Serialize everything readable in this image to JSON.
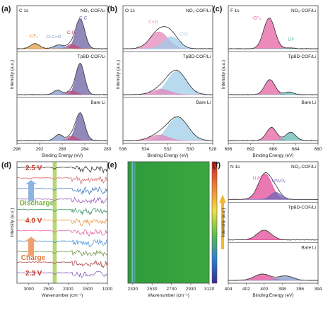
{
  "colors": {
    "cc": "#6a5aa0",
    "co": "#c0487a",
    "ocoo": "#7d96c9",
    "cf3": "#e59a3c",
    "c_o_o1s": "#9ccce8",
    "cdo_o1s": "#e383b8",
    "cf_f": "#e45d9e",
    "lif": "#60b7b0",
    "li3n": "#e24596",
    "linxoy": "#6c63b7",
    "raw": "#8a8a8a",
    "frame": "#555555"
  },
  "figure": {
    "panels": [
      {
        "id": "a",
        "letter": "(a)",
        "title": "C 1s",
        "type": "xps",
        "xlabel": "Binding Energy (eV)",
        "ylabel": "Intensity (a.u.)",
        "xticks": [
          "296",
          "292",
          "288",
          "284",
          "280"
        ],
        "rows": [
          {
            "label": "NO₂-COF/Li",
            "peaks": [
              {
                "name": "C-C",
                "center": 284.8,
                "height": 0.78,
                "width": 0.8,
                "color_key": "cc"
              },
              {
                "name": "C-O",
                "center": 286.3,
                "height": 0.12,
                "width": 0.8,
                "color_key": "co"
              },
              {
                "name": "O-C=O",
                "center": 288.6,
                "height": 0.1,
                "width": 0.9,
                "color_key": "ocoo"
              },
              {
                "name": "-CF₃",
                "center": 292.8,
                "height": 0.14,
                "width": 0.8,
                "color_key": "cf3"
              }
            ],
            "labels": [
              {
                "text": "-CF₃",
                "x": 293.1,
                "y": 0.3,
                "color_key": "cf3"
              },
              {
                "text": "-O-C=O",
                "x": 289.6,
                "y": 0.28,
                "color_key": "ocoo"
              },
              {
                "text": "C-O",
                "x": 286.4,
                "y": 0.4,
                "color_key": "co"
              },
              {
                "text": "C-C",
                "x": 284.3,
                "y": 0.78,
                "color_key": "cc"
              }
            ]
          },
          {
            "label": "TpBD-COF/Li",
            "peaks": [
              {
                "name": "C-C",
                "center": 284.8,
                "height": 0.82,
                "width": 0.75,
                "color_key": "cc"
              },
              {
                "name": "C-O",
                "center": 286.3,
                "height": 0.1,
                "width": 0.8,
                "color_key": "co"
              },
              {
                "name": "O-C=O",
                "center": 288.8,
                "height": 0.12,
                "width": 0.7,
                "color_key": "ocoo"
              }
            ],
            "labels": []
          },
          {
            "label": "Bare Li",
            "peaks": [
              {
                "name": "C-C",
                "center": 284.8,
                "height": 0.72,
                "width": 0.8,
                "color_key": "cc"
              },
              {
                "name": "C-O",
                "center": 286.3,
                "height": 0.12,
                "width": 0.8,
                "color_key": "co"
              },
              {
                "name": "O-C=O",
                "center": 288.6,
                "height": 0.16,
                "width": 0.7,
                "color_key": "ocoo"
              }
            ],
            "labels": []
          }
        ]
      },
      {
        "id": "b",
        "letter": "(b)",
        "title": "O 1s",
        "type": "xps",
        "xlabel": "Binding Energy (eV)",
        "ylabel": "Intensity (a.u.)",
        "xticks": [
          "536",
          "534",
          "532",
          "530",
          "528"
        ],
        "rows": [
          {
            "label": "NO₂-COF/Li",
            "peaks": [
              {
                "name": "C=O",
                "center": 532.8,
                "height": 0.45,
                "width": 0.8,
                "color_key": "cdo_o1s"
              },
              {
                "name": "C-O",
                "center": 531.7,
                "height": 0.32,
                "width": 0.7,
                "color_key": "c_o_o1s"
              }
            ],
            "labels": [
              {
                "text": "C=O",
                "x": 533.3,
                "y": 0.68,
                "color_key": "cdo_o1s"
              },
              {
                "text": "C-O",
                "x": 530.6,
                "y": 0.35,
                "color_key": "c_o_o1s"
              }
            ]
          },
          {
            "label": "TpBD-COF/Li",
            "peaks": [
              {
                "name": "C-O",
                "center": 531.2,
                "height": 0.62,
                "width": 0.85,
                "color_key": "c_o_o1s"
              },
              {
                "name": "C=O",
                "center": 532.6,
                "height": 0.14,
                "width": 0.8,
                "color_key": "cdo_o1s"
              }
            ],
            "labels": []
          },
          {
            "label": "Bare Li",
            "peaks": [
              {
                "name": "C-O",
                "center": 531.1,
                "height": 0.62,
                "width": 0.9,
                "color_key": "c_o_o1s"
              },
              {
                "name": "C=O",
                "center": 532.8,
                "height": 0.15,
                "width": 0.8,
                "color_key": "cdo_o1s"
              }
            ],
            "labels": []
          }
        ]
      },
      {
        "id": "c",
        "letter": "(c)",
        "title": "F 1s",
        "type": "xps",
        "xlabel": "Binding Energy (eV)",
        "ylabel": "Intensity (a.u.)",
        "xticks": [
          "696",
          "692",
          "688",
          "684",
          "680"
        ],
        "rows": [
          {
            "label": "NO₂-COF/Li",
            "peaks": [
              {
                "name": "-CF₃",
                "center": 688.7,
                "height": 0.82,
                "width": 1.0,
                "color_key": "cf_f"
              },
              {
                "name": "LiF",
                "center": 685.0,
                "height": 0.02,
                "width": 0.8,
                "color_key": "lif"
              }
            ],
            "labels": [
              {
                "text": "-CF₃",
                "x": 691.0,
                "y": 0.78,
                "color_key": "cf_f"
              },
              {
                "text": "LiF",
                "x": 684.8,
                "y": 0.22,
                "color_key": "lif"
              }
            ]
          },
          {
            "label": "TpBD-COF/Li",
            "peaks": [
              {
                "name": "-CF₃",
                "center": 688.6,
                "height": 0.4,
                "width": 0.9,
                "color_key": "cf_f"
              },
              {
                "name": "LiF",
                "center": 685.2,
                "height": 0.07,
                "width": 0.8,
                "color_key": "lif"
              }
            ],
            "labels": []
          },
          {
            "label": "Bare Li",
            "peaks": [
              {
                "name": "-CF₃",
                "center": 688.3,
                "height": 0.35,
                "width": 0.9,
                "color_key": "cf_f"
              },
              {
                "name": "LiF",
                "center": 684.9,
                "height": 0.22,
                "width": 0.9,
                "color_key": "lif"
              }
            ],
            "labels": []
          }
        ]
      },
      {
        "id": "d",
        "letter": "(d)",
        "type": "ftir",
        "xlabel": "Wavenumber (cm⁻¹)",
        "ylabel": "Intensity (a.u.)",
        "xticks": [
          "3000",
          "2500",
          "2000",
          "1500",
          "1000"
        ],
        "voltage_labels": [
          {
            "text": "2.5 V",
            "row": 0
          },
          {
            "text": "4.0 V",
            "row": 5
          },
          {
            "text": "2.3 V",
            "row": 10
          }
        ],
        "arrows": [
          {
            "text": "Discharge",
            "direction": "up"
          },
          {
            "text": "Charge",
            "direction": "up"
          }
        ],
        "line_colors": [
          "#222222",
          "#d95f5f",
          "#3b78c4",
          "#9b59b6",
          "#2e8b57",
          "#f08c2e",
          "#e8559c",
          "#3a8dde",
          "#6a8f3a",
          "#aa3a3a",
          "#7a4db0"
        ]
      },
      {
        "id": "e",
        "letter": "(e)",
        "type": "heatmap",
        "xlabel": "Wavenumber (cm⁻¹)",
        "xticks": [
          "2330",
          "2530",
          "2730",
          "2930",
          "3120"
        ]
      },
      {
        "id": "f",
        "letter": "(f)",
        "title": "N 1s",
        "type": "xps",
        "xlabel": "Binding Energy (eV)",
        "ylabel": "Intensity (a.u.)",
        "xticks": [
          "404",
          "402",
          "400",
          "398",
          "396",
          "394"
        ],
        "rows": [
          {
            "label": "NO₂-COF/Li",
            "peaks": [
              {
                "name": "Li₃N",
                "center": 399.9,
                "height": 0.8,
                "width": 0.75,
                "color_key": "li3n"
              },
              {
                "name": "LiNₓOᵧ",
                "center": 398.7,
                "height": 0.22,
                "width": 0.6,
                "color_key": "linxoy"
              }
            ],
            "labels": [
              {
                "text": "Li₃N",
                "x": 400.8,
                "y": 0.62,
                "color_key": "li3n"
              },
              {
                "text": "LiNₓOᵧ",
                "x": 398.4,
                "y": 0.55,
                "color_key": "linxoy"
              }
            ]
          },
          {
            "label": "TpBD-COF/Li",
            "peaks": [
              {
                "name": "Li₃N",
                "center": 400.0,
                "height": 0.3,
                "width": 0.8,
                "color_key": "li3n"
              }
            ],
            "labels": []
          },
          {
            "label": "Bare Li",
            "peaks": [
              {
                "name": "Li₃N",
                "center": 400.2,
                "height": 0.2,
                "width": 0.9,
                "color_key": "li3n"
              },
              {
                "name": "Li₃N (2)",
                "center": 397.6,
                "height": 0.14,
                "width": 0.8,
                "color_key": "ocoo"
              }
            ],
            "labels": []
          }
        ]
      }
    ]
  },
  "chart_data": [
    {
      "type": "area",
      "title": "C 1s",
      "xlabel": "Binding Energy (eV)",
      "ylabel": "Intensity (a.u.)",
      "xlim": [
        296,
        280
      ],
      "series": [
        {
          "name": "NO₂-COF/Li",
          "peaks_eV": [
            284.8,
            286.3,
            288.6,
            292.8
          ],
          "peak_labels": [
            "C-C",
            "C-O",
            "-O-C=O",
            "-CF₃"
          ]
        },
        {
          "name": "TpBD-COF/Li",
          "peaks_eV": [
            284.8,
            286.3,
            288.8
          ]
        },
        {
          "name": "Bare Li",
          "peaks_eV": [
            284.8,
            286.3,
            288.6
          ]
        }
      ]
    },
    {
      "type": "area",
      "title": "O 1s",
      "xlabel": "Binding Energy (eV)",
      "ylabel": "Intensity (a.u.)",
      "xlim": [
        536,
        528
      ],
      "series": [
        {
          "name": "NO₂-COF/Li",
          "peaks_eV": [
            532.8,
            531.7
          ],
          "peak_labels": [
            "C=O",
            "C-O"
          ]
        },
        {
          "name": "TpBD-COF/Li",
          "peaks_eV": [
            531.2,
            532.6
          ]
        },
        {
          "name": "Bare Li",
          "peaks_eV": [
            531.1,
            532.8
          ]
        }
      ]
    },
    {
      "type": "area",
      "title": "F 1s",
      "xlabel": "Binding Energy (eV)",
      "ylabel": "Intensity (a.u.)",
      "xlim": [
        696,
        680
      ],
      "series": [
        {
          "name": "NO₂-COF/Li",
          "peaks_eV": [
            688.7,
            685.0
          ],
          "peak_labels": [
            "-CF₃",
            "LiF"
          ]
        },
        {
          "name": "TpBD-COF/Li",
          "peaks_eV": [
            688.6,
            685.2
          ]
        },
        {
          "name": "Bare Li",
          "peaks_eV": [
            688.3,
            684.9
          ]
        }
      ]
    },
    {
      "type": "line",
      "xlabel": "Wavenumber (cm⁻¹)",
      "ylabel": "Intensity (a.u.)",
      "xlim": [
        3300,
        1000
      ],
      "annotations": [
        "2.5 V",
        "4.0 V",
        "2.3 V",
        "Discharge",
        "Charge"
      ],
      "highlight_band_cm-1": 2340
    },
    {
      "type": "heatmap",
      "xlabel": "Wavenumber (cm⁻¹)",
      "xlim": [
        2280,
        3120
      ],
      "x_ticks": [
        2330,
        2530,
        2730,
        2930,
        3120
      ]
    },
    {
      "type": "area",
      "title": "N 1s",
      "xlabel": "Binding Energy (eV)",
      "ylabel": "Intensity (a.u.)",
      "xlim": [
        404,
        394
      ],
      "series": [
        {
          "name": "NO₂-COF/Li",
          "peaks_eV": [
            399.9,
            398.7
          ],
          "peak_labels": [
            "Li₃N",
            "LiNₓOᵧ"
          ]
        },
        {
          "name": "TpBD-COF/Li",
          "peaks_eV": [
            400.0
          ]
        },
        {
          "name": "Bare Li",
          "peaks_eV": [
            400.2,
            397.6
          ]
        }
      ]
    }
  ]
}
